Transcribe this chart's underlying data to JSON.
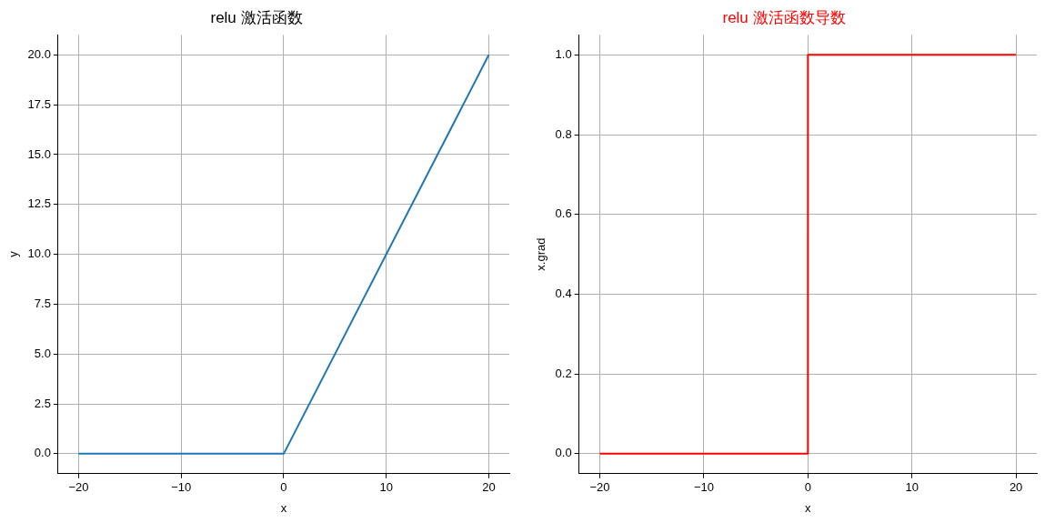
{
  "chart_data": [
    {
      "type": "line",
      "title": "relu 激活函数",
      "xlabel": "x",
      "ylabel": "y",
      "series": [
        {
          "color": "#1f77b4",
          "x": [
            -20,
            0,
            20
          ],
          "values": [
            0,
            0,
            20
          ]
        }
      ],
      "xlim": [
        -22,
        22
      ],
      "ylim": [
        -1,
        21
      ],
      "xticks": [
        -20,
        -10,
        0,
        10,
        20
      ],
      "yticks": [
        {
          "value": 0,
          "label": "0.0"
        },
        {
          "value": 2.5,
          "label": "2.5"
        },
        {
          "value": 5,
          "label": "5.0"
        },
        {
          "value": 7.5,
          "label": "7.5"
        },
        {
          "value": 10,
          "label": "10.0"
        },
        {
          "value": 12.5,
          "label": "12.5"
        },
        {
          "value": 15,
          "label": "15.0"
        },
        {
          "value": 17.5,
          "label": "17.5"
        },
        {
          "value": 20,
          "label": "20.0"
        }
      ],
      "grid": true,
      "legend": false,
      "marker": "none",
      "line_style": "solid"
    },
    {
      "type": "line",
      "title": "relu 激活函数导数",
      "xlabel": "x",
      "ylabel": "x.grad",
      "series": [
        {
          "color": "#ff0000",
          "x": [
            -20,
            0,
            0,
            20
          ],
          "values": [
            0,
            0,
            1,
            1
          ]
        }
      ],
      "xlim": [
        -22,
        22
      ],
      "ylim": [
        -0.05,
        1.05
      ],
      "xticks": [
        -20,
        -10,
        0,
        10,
        20
      ],
      "yticks": [
        {
          "value": 0,
          "label": "0.0"
        },
        {
          "value": 0.2,
          "label": "0.2"
        },
        {
          "value": 0.4,
          "label": "0.4"
        },
        {
          "value": 0.6,
          "label": "0.6"
        },
        {
          "value": 0.8,
          "label": "0.8"
        },
        {
          "value": 1,
          "label": "1.0"
        }
      ],
      "grid": true,
      "legend": false,
      "marker": "none",
      "line_style": "solid"
    }
  ]
}
